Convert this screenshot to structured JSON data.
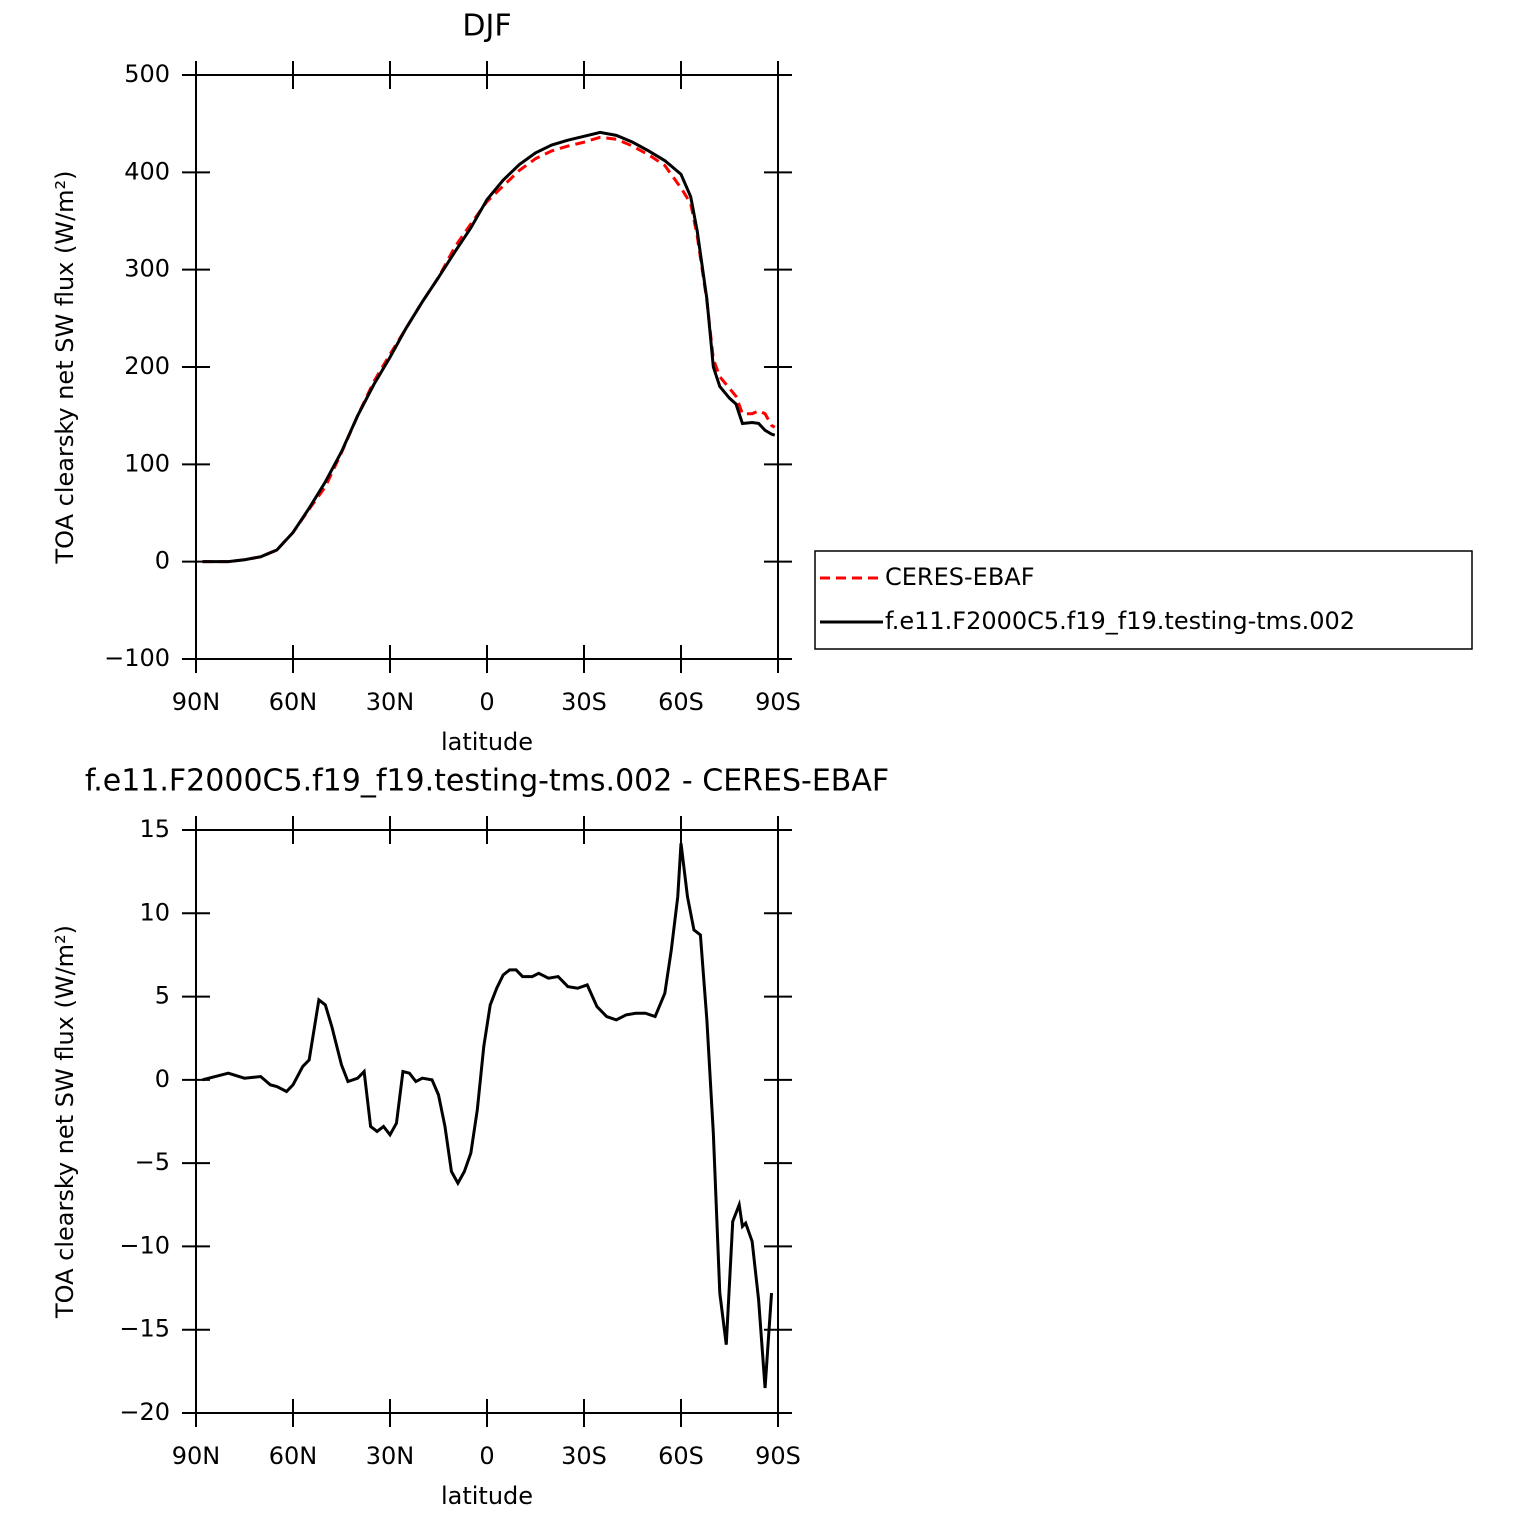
{
  "chart_data": [
    {
      "type": "line",
      "title": "DJF",
      "xlabel": "latitude",
      "ylabel": "TOA clearsky net SW flux (W/m²)",
      "x": [
        88,
        80,
        75,
        70,
        65,
        60,
        55,
        50,
        45,
        40,
        35,
        30,
        25,
        20,
        15,
        10,
        5,
        0,
        -5,
        -10,
        -15,
        -20,
        -25,
        -30,
        -35,
        -40,
        -45,
        -50,
        -55,
        -60,
        -63,
        -65,
        -68,
        -70,
        -72,
        -75,
        -77,
        -79,
        -82,
        -84,
        -86,
        -88,
        -89
      ],
      "series": [
        {
          "name": "CERES-EBAF",
          "color": "#ff0000",
          "dash": true,
          "values": [
            0,
            0,
            2,
            5,
            12,
            30,
            54,
            77,
            112,
            150,
            185,
            213,
            240,
            267,
            292,
            323,
            347,
            370,
            386,
            402,
            414,
            422,
            427,
            431,
            436,
            434,
            427,
            418,
            407,
            384,
            368,
            335,
            268,
            208,
            190,
            178,
            170,
            152,
            152,
            155,
            152,
            140,
            138
          ]
        },
        {
          "name": "f.e11.F2000C5.f19_f19.testing-tms.002",
          "color": "#000000",
          "dash": false,
          "values": [
            0,
            0,
            2,
            5,
            12,
            30,
            55,
            82,
            113,
            150,
            182,
            210,
            240,
            267,
            292,
            318,
            343,
            372,
            392,
            408,
            420,
            428,
            433,
            437,
            441,
            438,
            431,
            422,
            412,
            398,
            375,
            340,
            270,
            200,
            180,
            168,
            162,
            142,
            143,
            142,
            135,
            131,
            130
          ]
        }
      ],
      "xlim": [
        90,
        -90
      ],
      "xticks": [
        {
          "value": 90,
          "label": "90N"
        },
        {
          "value": 60,
          "label": "60N"
        },
        {
          "value": 30,
          "label": "30N"
        },
        0,
        {
          "value": -30,
          "label": "30S"
        },
        {
          "value": -60,
          "label": "60S"
        },
        {
          "value": -90,
          "label": "90S"
        }
      ],
      "ylim": [
        -100,
        500
      ],
      "yticks": [
        {
          "value": -100,
          "label": "−100"
        },
        0,
        100,
        200,
        300,
        400,
        500
      ],
      "legend": "right"
    },
    {
      "type": "line",
      "title": "f.e11.F2000C5.f19_f19.testing-tms.002 - CERES-EBAF",
      "xlabel": "latitude",
      "ylabel": "TOA clearsky net SW flux (W/m²)",
      "x": [
        88,
        80,
        75,
        70,
        67,
        65,
        62,
        60,
        57,
        55,
        52,
        50,
        48,
        45,
        43,
        40,
        38,
        36,
        34,
        32,
        30,
        28,
        26,
        24,
        22,
        20,
        17,
        15,
        13,
        11,
        9,
        7,
        5,
        3,
        1,
        -1,
        -3,
        -5,
        -7,
        -9,
        -11,
        -14,
        -16,
        -19,
        -22,
        -25,
        -28,
        -31,
        -34,
        -37,
        -40,
        -43,
        -46,
        -49,
        -52,
        -55,
        -57,
        -59,
        -60,
        -62,
        -64,
        -66,
        -68,
        -70,
        -72,
        -74,
        -76,
        -78,
        -79,
        -80,
        -82,
        -84,
        -86,
        -88
      ],
      "series": [
        {
          "color": "#000000",
          "dash": false,
          "values": [
            0,
            0.4,
            0.1,
            0.2,
            -0.3,
            -0.4,
            -0.7,
            -0.3,
            0.8,
            1.2,
            4.8,
            4.5,
            3.2,
            0.9,
            -0.1,
            0.1,
            0.5,
            -2.8,
            -3.1,
            -2.8,
            -3.3,
            -2.6,
            0.5,
            0.4,
            -0.1,
            0.1,
            0,
            -0.9,
            -2.8,
            -5.5,
            -6.2,
            -5.5,
            -4.4,
            -1.8,
            2,
            4.5,
            5.5,
            6.3,
            6.6,
            6.6,
            6.2,
            6.2,
            6.4,
            6.1,
            6.2,
            5.6,
            5.5,
            5.7,
            4.4,
            3.8,
            3.6,
            3.9,
            4,
            4,
            3.8,
            5.2,
            7.8,
            11,
            14.2,
            11,
            9,
            8.7,
            3.6,
            -3.2,
            -12.8,
            -15.9,
            -8.5,
            -7.5,
            -8.8,
            -8.6,
            -9.7,
            -13.2,
            -18.5,
            -12.8
          ]
        }
      ],
      "xlim": [
        90,
        -90
      ],
      "xticks": [
        {
          "value": 90,
          "label": "90N"
        },
        {
          "value": 60,
          "label": "60N"
        },
        {
          "value": 30,
          "label": "30N"
        },
        0,
        {
          "value": -30,
          "label": "30S"
        },
        {
          "value": -60,
          "label": "60S"
        },
        {
          "value": -90,
          "label": "90S"
        }
      ],
      "ylim": [
        -20,
        15
      ],
      "yticks": [
        {
          "value": -20,
          "label": "−20"
        },
        {
          "value": -15,
          "label": "−15"
        },
        {
          "value": -10,
          "label": "−10"
        },
        {
          "value": -5,
          "label": "−5"
        },
        0,
        5,
        10,
        15
      ]
    }
  ]
}
